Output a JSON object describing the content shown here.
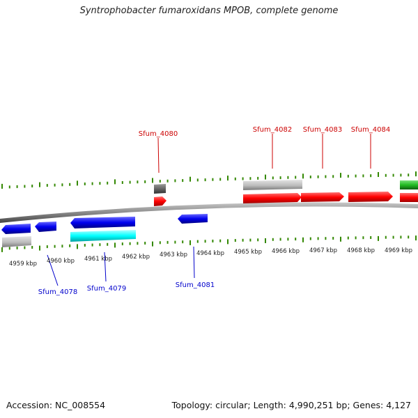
{
  "title": "Syntrophobacter fumaroxidans MPOB, complete genome",
  "footer": {
    "accession": "Accession: NC_008554",
    "summary": "Topology: circular; Length: 4,990,251 bp; Genes: 4,127"
  },
  "colors": {
    "forward_cds": "#ff0000",
    "reverse_cds": "#0000ee",
    "forward_label": "#cc0000",
    "reverse_label": "#0000cc",
    "gene_gray": "#bbbbbb",
    "dark_gray": "#666666",
    "cyan": "#00ffff",
    "green": "#22bb22",
    "tick_green": "#338800",
    "backbone": "#888888"
  },
  "kbp_ticks": [
    "4959 kbp",
    "4960 kbp",
    "4961 kbp",
    "4962 kbp",
    "4963 kbp",
    "4964 kbp",
    "4965 kbp",
    "4966 kbp",
    "4967 kbp",
    "4968 kbp",
    "4969 kbp"
  ],
  "gene_labels": {
    "forward": [
      "Sfum_4080",
      "Sfum_4082",
      "Sfum_4083",
      "Sfum_4084"
    ],
    "reverse": [
      "Sfum_4078",
      "Sfum_4079",
      "Sfum_4081"
    ]
  }
}
